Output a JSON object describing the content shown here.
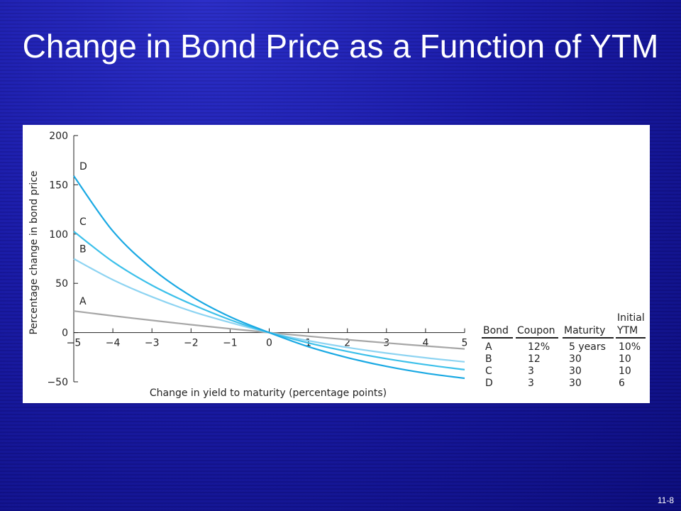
{
  "slide": {
    "title": "Change in Bond Price as a Function of YTM",
    "page_number": "11-8"
  },
  "chart_data": {
    "type": "line",
    "xlabel": "Change in yield to maturity (percentage points)",
    "ylabel": "Percentage change in bond price",
    "xlim": [
      -5,
      5
    ],
    "ylim": [
      -50,
      200
    ],
    "x_tick_labels": [
      "−5",
      "−4",
      "−3",
      "−2",
      "−1",
      "0",
      "1",
      "2",
      "3",
      "4",
      "5"
    ],
    "y_tick_labels": [
      "200",
      "150",
      "100",
      "50",
      "0",
      "−50"
    ],
    "grid": false,
    "series": [
      {
        "name": "A",
        "color": "#a6a6a6",
        "x": [
          -5,
          -4,
          -3,
          -2,
          -1,
          0,
          1,
          2,
          3,
          4,
          5
        ],
        "y": [
          21.9,
          17.0,
          12.4,
          8.0,
          3.9,
          0,
          -3.7,
          -7.2,
          -10.5,
          -13.6,
          -16.6
        ]
      },
      {
        "name": "B",
        "color": "#8ed4f2",
        "x": [
          -5,
          -4,
          -3,
          -2,
          -1,
          0,
          1,
          2,
          3,
          4,
          5
        ],
        "y": [
          74.9,
          53.6,
          36.3,
          21.8,
          10.2,
          0,
          -8.2,
          -15.1,
          -20.8,
          -25.6,
          -29.7
        ]
      },
      {
        "name": "C",
        "color": "#3cc0ea",
        "x": [
          -5,
          -4,
          -3,
          -2,
          -1,
          0,
          1,
          2,
          3,
          4,
          5
        ],
        "y": [
          102.7,
          72.0,
          48.0,
          29.0,
          13.0,
          0,
          -10.5,
          -19.2,
          -26.5,
          -32.6,
          -37.7
        ]
      },
      {
        "name": "D",
        "color": "#1aa9e3",
        "x": [
          -5,
          -4,
          -3,
          -2,
          -1,
          0,
          1,
          2,
          3,
          4,
          5
        ],
        "y": [
          159.0,
          103.0,
          65.0,
          37.0,
          16.0,
          0,
          -14.3,
          -25.4,
          -34.3,
          -41.2,
          -46.4
        ]
      }
    ],
    "curve_labels": [
      "D",
      "C",
      "B",
      "A"
    ],
    "table": {
      "header_top": [
        "",
        "",
        "",
        "Initial"
      ],
      "headers": [
        "Bond",
        "Coupon",
        "Maturity",
        "YTM"
      ],
      "rows": [
        [
          "A",
          "12%",
          "5 years",
          "10%"
        ],
        [
          "B",
          "12",
          "30",
          "10"
        ],
        [
          "C",
          "3",
          "30",
          "10"
        ],
        [
          "D",
          "3",
          "30",
          "6"
        ]
      ]
    }
  }
}
